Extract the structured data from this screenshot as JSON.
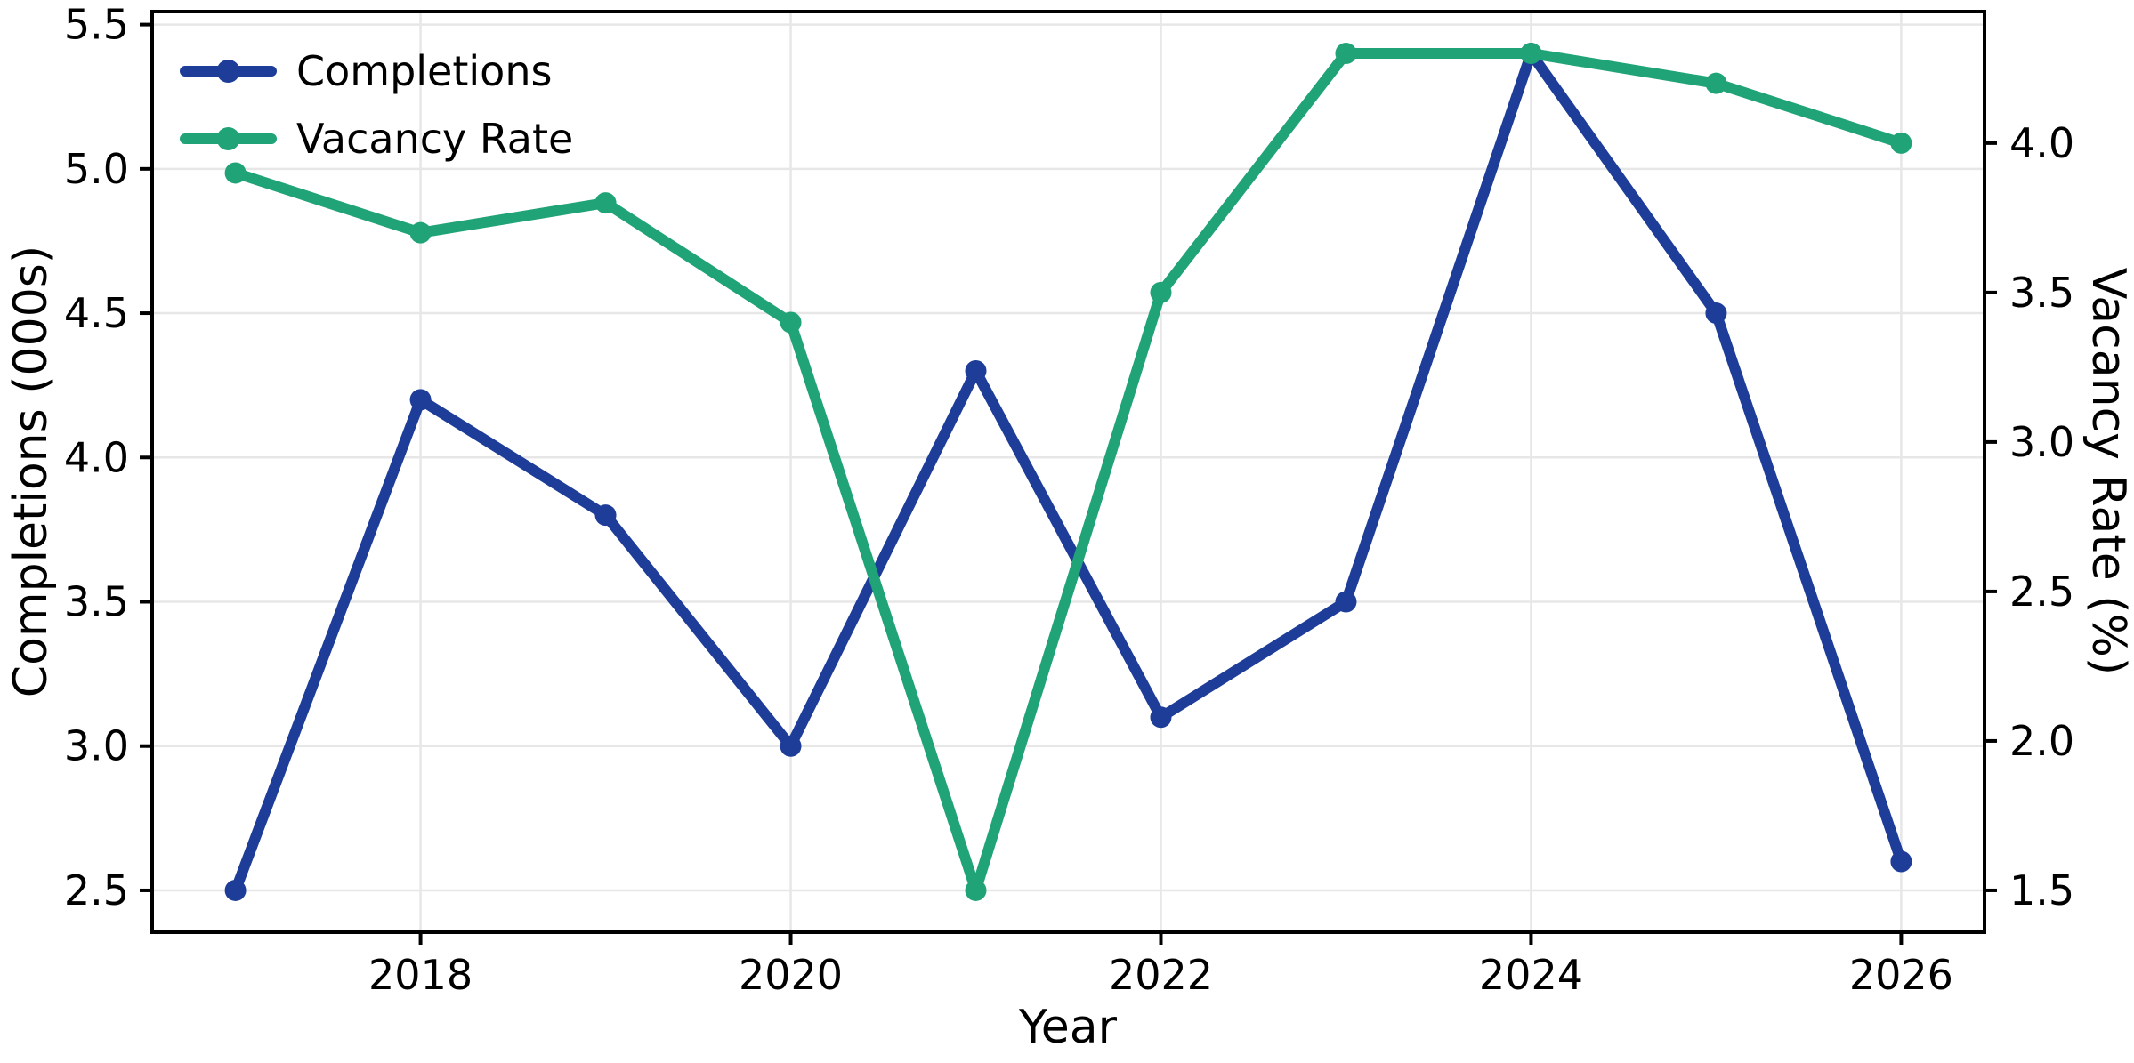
{
  "chart_data": {
    "type": "line",
    "title": "",
    "xlabel": "Year",
    "ylabel_left": "Completions (000s)",
    "ylabel_right": "Vacancy Rate (%)",
    "x": [
      2017,
      2018,
      2019,
      2020,
      2021,
      2022,
      2023,
      2024,
      2025,
      2026
    ],
    "series": [
      {
        "name": "Completions",
        "axis": "left",
        "color": "#1e3d99",
        "marker": "circle",
        "values": [
          2.5,
          4.2,
          3.8,
          3.0,
          4.3,
          3.1,
          3.5,
          5.4,
          4.5,
          2.6
        ]
      },
      {
        "name": "Vacancy Rate",
        "axis": "right",
        "color": "#20a377",
        "marker": "circle",
        "values": [
          3.9,
          3.7,
          3.8,
          3.4,
          1.5,
          3.5,
          4.3,
          4.3,
          4.2,
          4.0
        ]
      }
    ],
    "x_ticks": [
      2018,
      2020,
      2022,
      2024,
      2026
    ],
    "x_tick_labels": [
      "2018",
      "2020",
      "2022",
      "2024",
      "2026"
    ],
    "left_ticks": [
      2.5,
      3.0,
      3.5,
      4.0,
      4.5,
      5.0,
      5.5
    ],
    "left_tick_labels": [
      "2.5",
      "3.0",
      "3.5",
      "4.0",
      "4.5",
      "5.0",
      "5.5"
    ],
    "right_ticks": [
      1.5,
      2.0,
      2.5,
      3.0,
      3.5,
      4.0
    ],
    "right_tick_labels": [
      "1.5",
      "2.0",
      "2.5",
      "3.0",
      "3.5",
      "4.0"
    ],
    "xlim": [
      2016.55,
      2026.45
    ],
    "ylim_left": [
      2.355,
      5.545
    ],
    "ylim_right": [
      1.36,
      4.44
    ],
    "grid": true,
    "legend": {
      "position": "upper-left",
      "frame": false
    },
    "colors": {
      "grid": "#e7e7e7",
      "spine": "#000000",
      "text": "#000000",
      "background": "#ffffff"
    }
  }
}
